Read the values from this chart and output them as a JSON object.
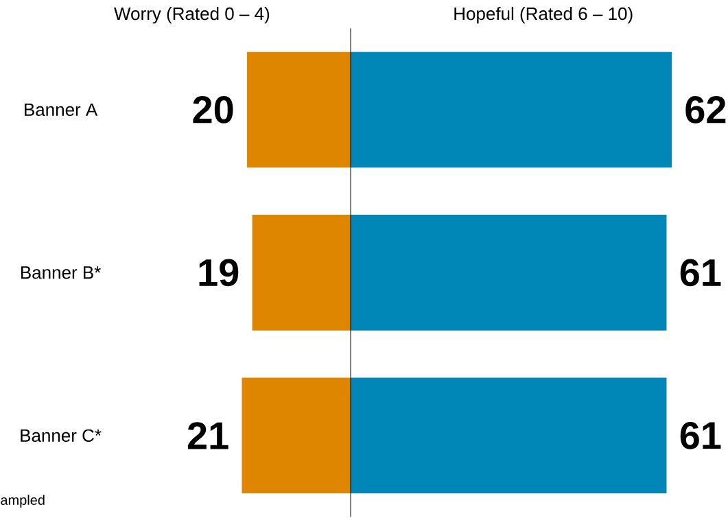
{
  "chart_data": [
    {
      "type": "bar",
      "orientation": "horizontal",
      "title": "Worry (Rated 0 – 4)",
      "categories": [
        "Banner A",
        "Banner B*",
        "Banner C*"
      ],
      "series": [
        {
          "color": "#df8600",
          "values": [
            20,
            19,
            21
          ]
        }
      ],
      "data_labels": true,
      "tick_labels": "y",
      "annotations": [
        "ampled"
      ]
    },
    {
      "type": "bar",
      "orientation": "horizontal",
      "title": "Hopeful (Rated 6 – 10)",
      "categories": [
        null,
        null,
        null
      ],
      "series": [
        {
          "color": "#0087b8",
          "values": [
            62,
            61,
            61
          ]
        }
      ],
      "data_labels": true,
      "tick_labels": false
    }
  ]
}
